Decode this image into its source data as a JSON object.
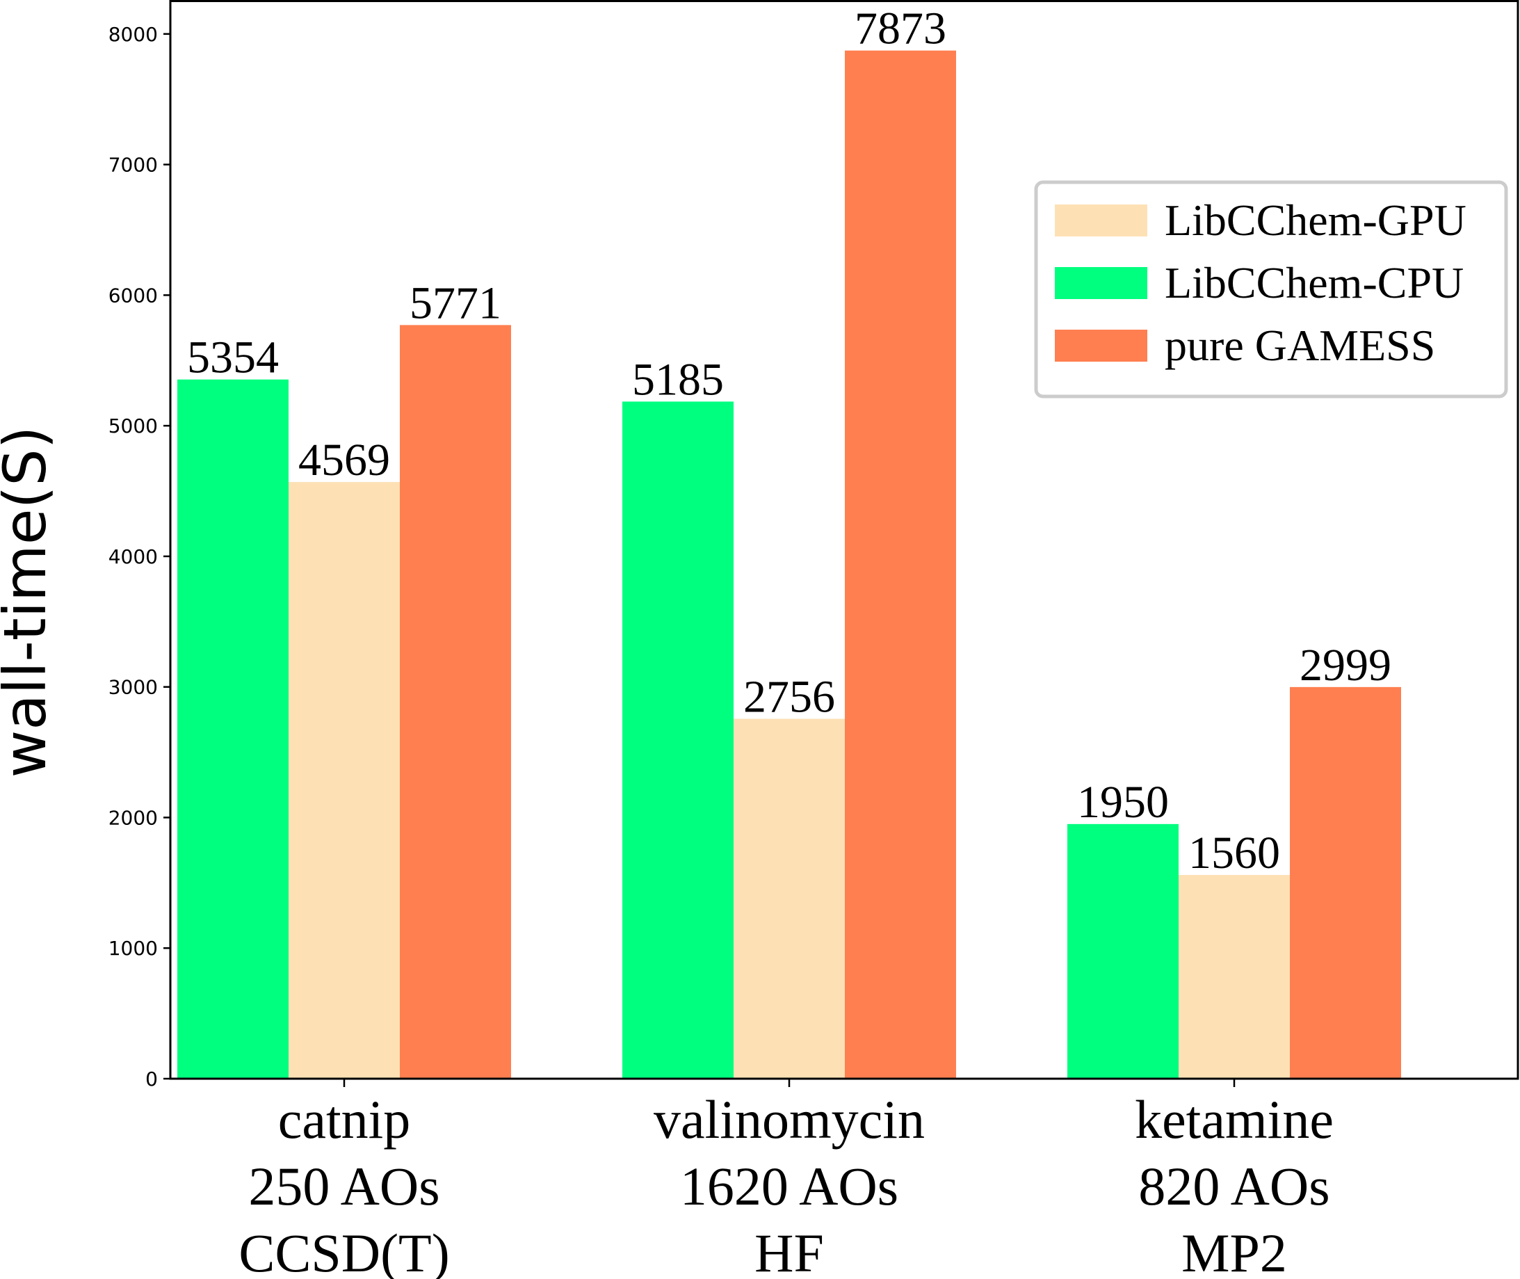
{
  "chart_data": {
    "type": "bar",
    "categories": [
      [
        "catnip",
        "250 AOs",
        "CCSD(T)"
      ],
      [
        "valinomycin",
        "1620 AOs",
        "HF"
      ],
      [
        "ketamine",
        "820 AOs",
        "MP2"
      ]
    ],
    "series": [
      {
        "name": "LibCChem-CPU",
        "color": "#00ff7f",
        "values": [
          5354,
          5185,
          1950
        ]
      },
      {
        "name": "LibCChem-GPU",
        "color": "#fde1b5",
        "values": [
          4569,
          2756,
          1560
        ]
      },
      {
        "name": "pure GAMESS",
        "color": "#ff7f50",
        "values": [
          5771,
          7873,
          2999
        ]
      }
    ],
    "data_labels": [
      [
        "5354",
        "5185",
        "1950"
      ],
      [
        "4569",
        "2756",
        "1560"
      ],
      [
        "5771",
        "7873",
        "2999"
      ]
    ],
    "legend": {
      "placement": "upper-right",
      "entries": [
        {
          "label": "LibCChem-GPU",
          "color": "#fde1b5"
        },
        {
          "label": "LibCChem-CPU",
          "color": "#00ff7f"
        },
        {
          "label": "pure GAMESS",
          "color": "#ff7f50"
        }
      ]
    },
    "ylabel": "wall-time(S)",
    "yticks": [
      0,
      1000,
      2000,
      3000,
      4000,
      5000,
      6000,
      7000,
      8000
    ],
    "ylim": [
      0,
      8260
    ],
    "grid": false
  }
}
